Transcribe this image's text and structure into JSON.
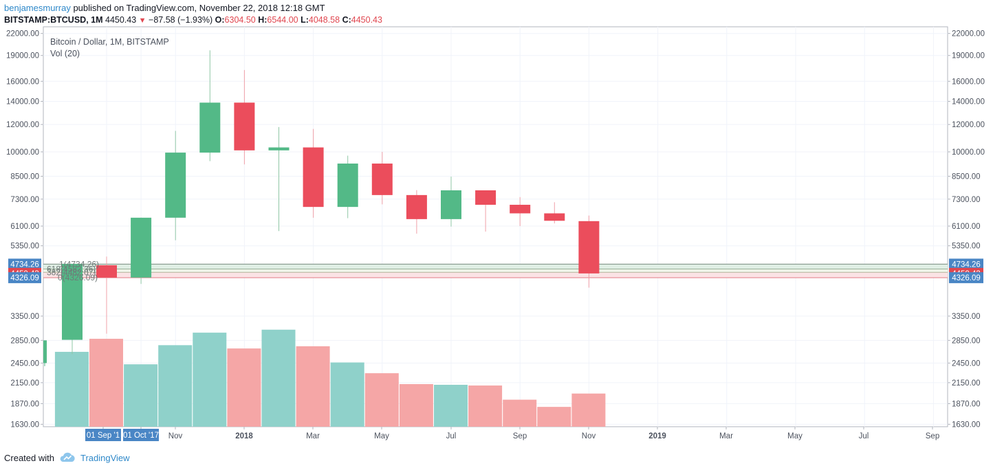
{
  "header": {
    "author": "benjamesmurray",
    "published_text": " published on TradingView.com, November 22, 2018 12:18 GMT",
    "symbol": "BITSTAMP:BTCUSD, 1M",
    "last": "4450.43",
    "change": "−87.58 (−1.93%)",
    "o_label": "O:",
    "o_value": "6304.50",
    "h_label": "H:",
    "h_value": "6544.00",
    "l_label": "L:",
    "l_value": "4048.58",
    "c_label": "C:",
    "c_value": "4450.43"
  },
  "footer": {
    "created_with": "Created with",
    "brand": "TradingView"
  },
  "colors": {
    "up": "#53b987",
    "down": "#eb4d5c",
    "vol_up": "#8fd1ca",
    "vol_down": "#f5a6a6",
    "price_label": "#e0464f",
    "level_label": "#4a86c5",
    "accent": "#2e88c9"
  },
  "chart_data": {
    "type": "candlestick",
    "legend_title": "Bitcoin / Dollar, 1M, BITSTAMP",
    "legend_indicator": "Vol (20)",
    "y_scale": "log",
    "yticks": [
      1630,
      1870,
      2150,
      2450,
      2850,
      3350,
      4326.09,
      4450.43,
      4734.26,
      5350,
      6100,
      7300,
      8500,
      10000,
      12000,
      14000,
      16000,
      19000,
      22000
    ],
    "tick_labels": [
      "1630.00",
      "1870.00",
      "2150.00",
      "2450.00",
      "2850.00",
      "3350.00",
      "5350.00",
      "6100.00",
      "7300.00",
      "8500.00",
      "10000.00",
      "12000.00",
      "14000.00",
      "16000.00",
      "19000.00",
      "22000.00"
    ],
    "x_labels": [
      "01 Sep '1",
      "01 Oct '17",
      "Nov",
      "2018",
      "Mar",
      "May",
      "Jul",
      "Sep",
      "Nov",
      "2019",
      "Mar",
      "May",
      "Jul",
      "Sep"
    ],
    "price_markers": [
      {
        "label": "4734.26",
        "value": 4734.26,
        "kind": "level"
      },
      {
        "label": "4450.43",
        "value": 4450.43,
        "kind": "last"
      },
      {
        "label": "4326.09",
        "value": 4326.09,
        "kind": "level"
      }
    ],
    "fib_labels": [
      {
        "label": "1(4734.26)",
        "value": 4734.26
      },
      {
        "label": "618(4582.36)",
        "value": 4582.36
      },
      {
        "label": "382(4482.07)",
        "value": 4482.07
      },
      {
        "label": "0(4326.09)",
        "value": 4326.09
      }
    ],
    "candles": [
      {
        "month": "Sep 2017",
        "open": 4700,
        "high": 4980,
        "low": 2980,
        "close": 4330
      },
      {
        "month": "Oct 2017",
        "open": 4330,
        "high": 6450,
        "low": 4150,
        "close": 6450
      },
      {
        "month": "Nov 2017",
        "open": 6450,
        "high": 11500,
        "low": 5550,
        "close": 9950
      },
      {
        "month": "Dec 2017",
        "open": 9950,
        "high": 19666,
        "low": 9400,
        "close": 13880
      },
      {
        "month": "Jan 2018",
        "open": 13880,
        "high": 17250,
        "low": 9200,
        "close": 10100
      },
      {
        "month": "Feb 2018",
        "open": 10100,
        "high": 11800,
        "low": 5900,
        "close": 10300
      },
      {
        "month": "Mar 2018",
        "open": 10300,
        "high": 11650,
        "low": 6450,
        "close": 6930
      },
      {
        "month": "Apr 2018",
        "open": 6930,
        "high": 9750,
        "low": 6430,
        "close": 9250
      },
      {
        "month": "May 2018",
        "open": 9250,
        "high": 10000,
        "low": 7050,
        "close": 7500
      },
      {
        "month": "Jun 2018",
        "open": 7500,
        "high": 7750,
        "low": 5800,
        "close": 6390
      },
      {
        "month": "Jul 2018",
        "open": 6390,
        "high": 8480,
        "low": 6080,
        "close": 7740
      },
      {
        "month": "Aug 2018",
        "open": 7740,
        "high": 7740,
        "low": 5880,
        "close": 7030
      },
      {
        "month": "Sep 2018",
        "open": 7030,
        "high": 7400,
        "low": 6100,
        "close": 6640
      },
      {
        "month": "Oct 2018",
        "open": 6640,
        "high": 7150,
        "low": 6210,
        "close": 6320
      },
      {
        "month": "Nov 2018",
        "open": 6304.5,
        "high": 6544,
        "low": 4048.58,
        "close": 4450.43
      }
    ],
    "volume": [
      {
        "month": "Aug 2017",
        "level": 2640,
        "up": true
      },
      {
        "month": "Sep 2017",
        "level": 2880,
        "up": false
      },
      {
        "month": "Oct 2017",
        "level": 2430,
        "up": true
      },
      {
        "month": "Nov 2017",
        "level": 2760,
        "up": true
      },
      {
        "month": "Dec 2017",
        "level": 3000,
        "up": true
      },
      {
        "month": "Jan 2018",
        "level": 2700,
        "up": false
      },
      {
        "month": "Feb 2018",
        "level": 3060,
        "up": true
      },
      {
        "month": "Mar 2018",
        "level": 2740,
        "up": false
      },
      {
        "month": "Apr 2018",
        "level": 2460,
        "up": true
      },
      {
        "month": "May 2018",
        "level": 2290,
        "up": false
      },
      {
        "month": "Jun 2018",
        "level": 2130,
        "up": false
      },
      {
        "month": "Jul 2018",
        "level": 2120,
        "up": true
      },
      {
        "month": "Aug 2018",
        "level": 2110,
        "up": false
      },
      {
        "month": "Sep 2018",
        "level": 1920,
        "up": false
      },
      {
        "month": "Oct 2018",
        "level": 1830,
        "up": false
      },
      {
        "month": "Nov 2018",
        "level": 2000,
        "up": false
      }
    ]
  }
}
